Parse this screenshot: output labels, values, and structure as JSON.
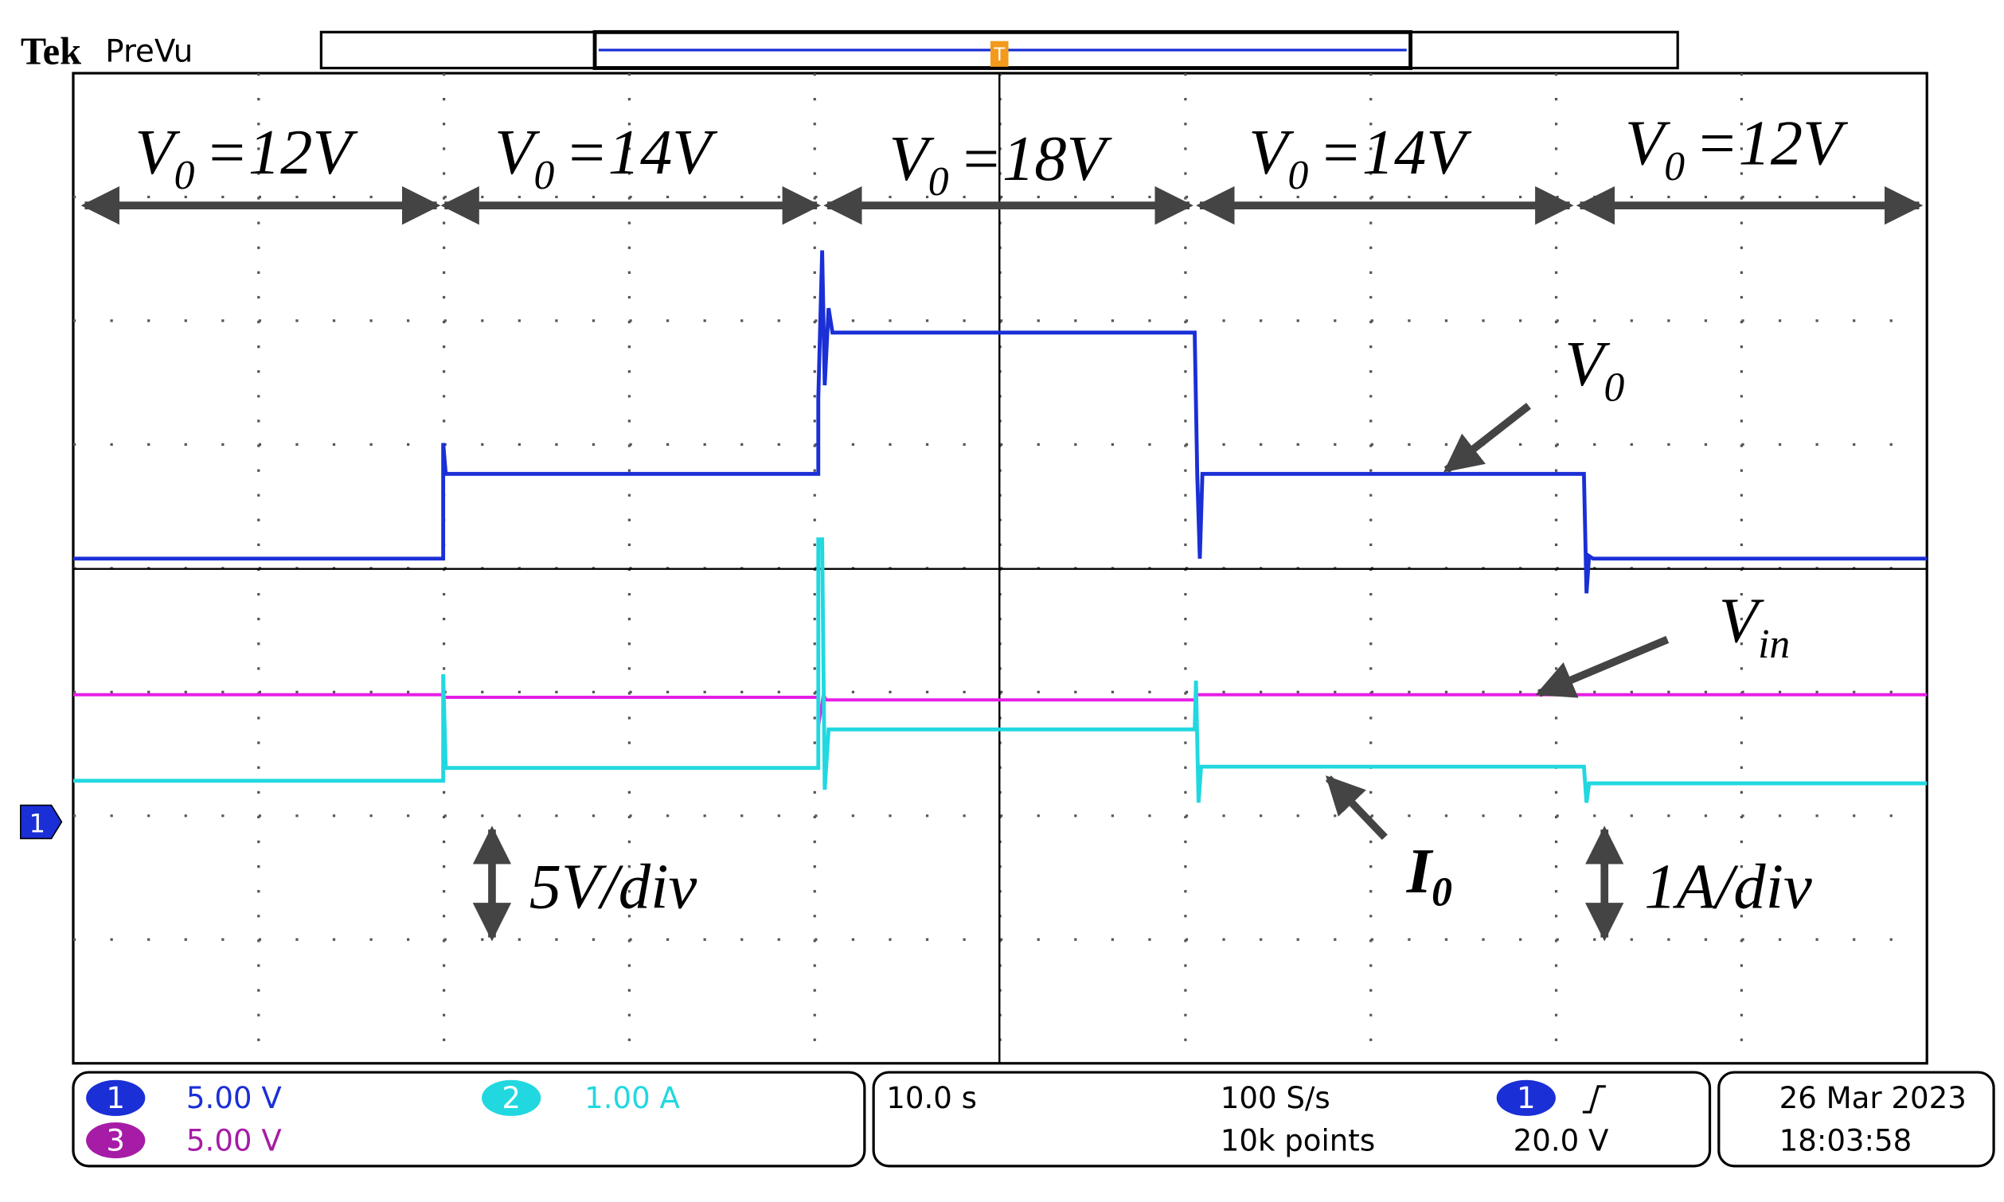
{
  "header": {
    "brand": "Tek",
    "mode": "PreVu",
    "trigger_marker": "T"
  },
  "annotations": {
    "segments": [
      {
        "symbol": "V",
        "subscript": "0",
        "text": "=12V"
      },
      {
        "symbol": "V",
        "subscript": "0",
        "text": "=14V"
      },
      {
        "symbol": "V",
        "subscript": "0",
        "text": "=18V"
      },
      {
        "symbol": "V",
        "subscript": "0",
        "text": "=14V"
      },
      {
        "symbol": "V",
        "subscript": "0",
        "text": "=12V"
      }
    ],
    "traces": {
      "v0": {
        "symbol": "V",
        "subscript": "0"
      },
      "vin": {
        "symbol": "V",
        "subscript": "in"
      },
      "i0": {
        "symbol": "I",
        "subscript": "0"
      }
    },
    "scales": {
      "voltage": "5V/div",
      "current": "1A/div"
    }
  },
  "ground_marker": "1",
  "status": {
    "channels": [
      {
        "number": "1",
        "scale": "5.00 V"
      },
      {
        "number": "2",
        "scale": "1.00 A"
      },
      {
        "number": "3",
        "scale": "5.00 V"
      }
    ],
    "timebase": "10.0 s",
    "sample_rate": "100 S/s",
    "record_length": "10k points",
    "trigger": {
      "source": "1",
      "level": "20.0 V"
    },
    "date": "26 Mar 2023",
    "time": "18:03:58"
  }
}
